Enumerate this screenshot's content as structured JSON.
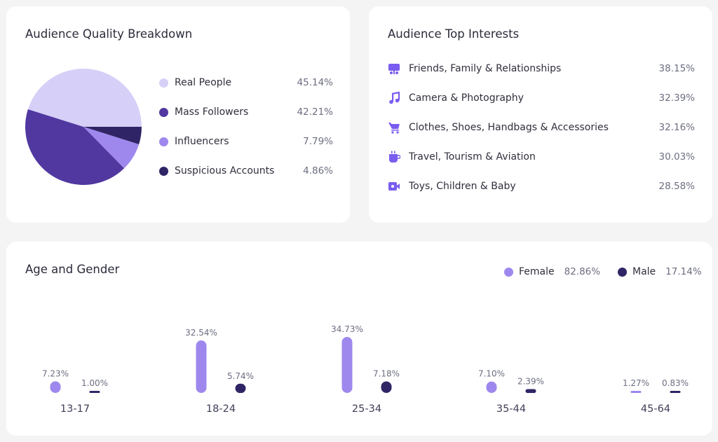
{
  "quality": {
    "title": "Audience Quality Breakdown",
    "items": [
      {
        "label": "Real People",
        "value": "45.14%",
        "percent": 45.14,
        "color": "#d6d0f8"
      },
      {
        "label": "Mass Followers",
        "value": "42.21%",
        "percent": 42.21,
        "color": "#5038a0"
      },
      {
        "label": "Influencers",
        "value": "7.79%",
        "percent": 7.79,
        "color": "#9e88ee"
      },
      {
        "label": "Suspicious Accounts",
        "value": "4.86%",
        "percent": 4.86,
        "color": "#2f2566"
      }
    ]
  },
  "interests": {
    "title": "Audience Top Interests",
    "items": [
      {
        "label": "Friends, Family & Relationships",
        "value": "38.15%",
        "icon": "people-screen-icon"
      },
      {
        "label": "Camera & Photography",
        "value": "32.39%",
        "icon": "music-note-icon"
      },
      {
        "label": "Clothes, Shoes, Handbags & Accessories",
        "value": "32.16%",
        "icon": "shopping-cart-icon"
      },
      {
        "label": "Travel, Tourism & Aviation",
        "value": "30.03%",
        "icon": "coffee-cup-icon"
      },
      {
        "label": "Toys, Children & Baby",
        "value": "28.58%",
        "icon": "video-camera-icon"
      }
    ],
    "icon_color": "#7a5cf0"
  },
  "age_gender": {
    "title": "Age and Gender",
    "female": {
      "label": "Female",
      "value": "82.86%",
      "color": "#9e88ee"
    },
    "male": {
      "label": "Male",
      "value": "17.14%",
      "color": "#2f2566"
    }
  },
  "chart_data": {
    "type": "bar",
    "categories": [
      "13-17",
      "18-24",
      "25-34",
      "35-44",
      "45-64"
    ],
    "series": [
      {
        "name": "Female",
        "values": [
          7.23,
          32.54,
          34.73,
          7.1,
          1.27
        ],
        "labels": [
          "7.23%",
          "32.54%",
          "34.73%",
          "7.10%",
          "1.27%"
        ]
      },
      {
        "name": "Male",
        "values": [
          1.0,
          5.74,
          7.18,
          2.39,
          0.83
        ],
        "labels": [
          "1.00%",
          "5.74%",
          "7.18%",
          "2.39%",
          "0.83%"
        ]
      }
    ],
    "xlabel": "",
    "ylabel": "",
    "ylim": [
      0,
      34.73
    ],
    "grid": false
  }
}
